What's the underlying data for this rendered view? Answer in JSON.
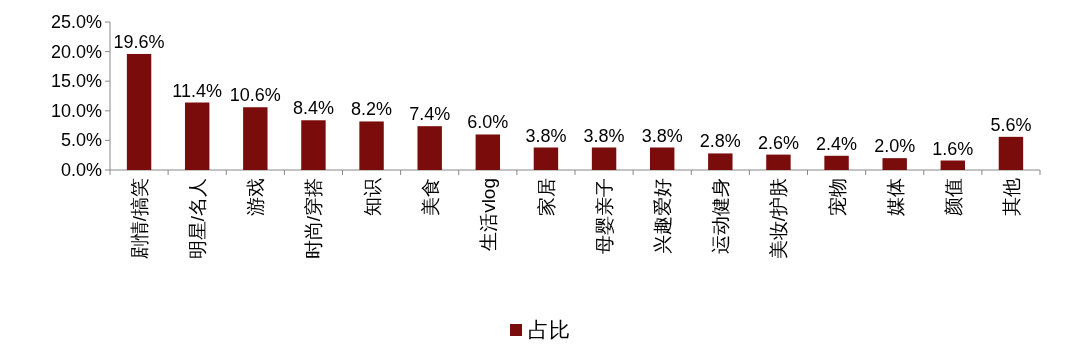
{
  "chart_data": {
    "type": "bar",
    "categories": [
      "剧情/搞笑",
      "明星/名人",
      "游戏",
      "时尚/穿搭",
      "知识",
      "美食",
      "生活vlog",
      "家居",
      "母婴亲子",
      "兴趣爱好",
      "运动健身",
      "美妆/护肤",
      "宠物",
      "媒体",
      "颜值",
      "其他"
    ],
    "series": [
      {
        "name": "占比",
        "color": "#7b0c0c",
        "values": [
          19.6,
          11.4,
          10.6,
          8.4,
          8.2,
          7.4,
          6.0,
          3.8,
          3.8,
          3.8,
          2.8,
          2.6,
          2.4,
          2.0,
          1.6,
          5.6
        ],
        "value_labels": [
          "19.6%",
          "11.4%",
          "10.6%",
          "8.4%",
          "8.2%",
          "7.4%",
          "6.0%",
          "3.8%",
          "3.8%",
          "3.8%",
          "2.8%",
          "2.6%",
          "2.4%",
          "2.0%",
          "1.6%",
          "5.6%"
        ]
      }
    ],
    "ylim": [
      0,
      25
    ],
    "yticks": [
      {
        "value": 0,
        "label": "0.0%"
      },
      {
        "value": 5,
        "label": "5.0%"
      },
      {
        "value": 10,
        "label": "10.0%"
      },
      {
        "value": 15,
        "label": "15.0%"
      },
      {
        "value": 20,
        "label": "20.0%"
      },
      {
        "value": 25,
        "label": "25.0%"
      }
    ],
    "grid": false,
    "legend": "bottom"
  }
}
